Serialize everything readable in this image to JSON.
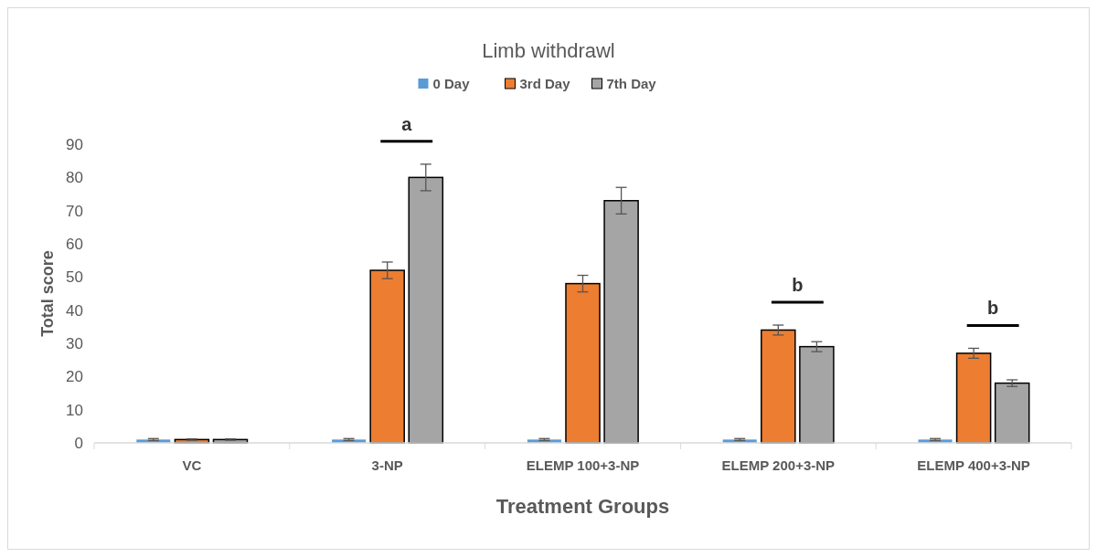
{
  "chart_data": {
    "type": "bar",
    "title": "Limb withdrawl",
    "xlabel": "Treatment Groups",
    "ylabel": "Total score",
    "categories": [
      "VC",
      "3-NP",
      "ELEMP 100+3-NP",
      "ELEMP 200+3-NP",
      "ELEMP 400+3-NP"
    ],
    "series": [
      {
        "name": "0 Day",
        "color": "#5b9bd5",
        "values": [
          1,
          1,
          1,
          1,
          1
        ],
        "errors": [
          0.3,
          0.3,
          0.3,
          0.3,
          0.3
        ]
      },
      {
        "name": "3rd Day",
        "color": "#ed7d31",
        "values": [
          1,
          52,
          48,
          34,
          27
        ],
        "errors": [
          0.2,
          2.5,
          2.5,
          1.5,
          1.5
        ]
      },
      {
        "name": "7th Day",
        "color": "#a5a5a5",
        "values": [
          1,
          80,
          73,
          29,
          18
        ],
        "errors": [
          0.2,
          4,
          4,
          1.5,
          1
        ]
      }
    ],
    "ylim": [
      0,
      90
    ],
    "yticks": [
      0,
      10,
      20,
      30,
      40,
      50,
      60,
      70,
      80,
      90
    ],
    "grid": false,
    "legend": "top",
    "annotations": [
      "a",
      "b",
      "b"
    ]
  }
}
